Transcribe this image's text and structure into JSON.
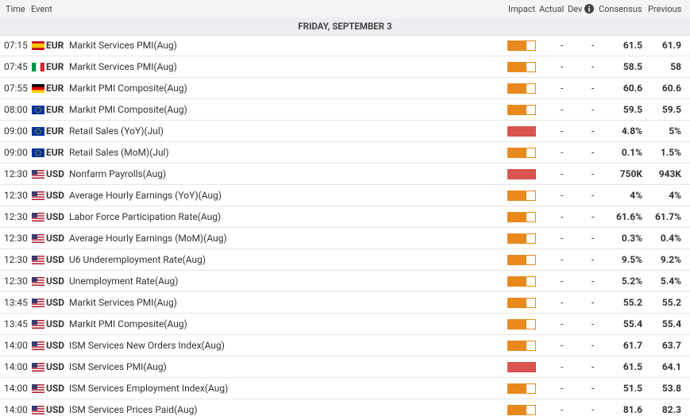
{
  "header": {
    "time": "Time",
    "event": "Event",
    "impact": "Impact",
    "actual": "Actual",
    "dev": "Dev",
    "consensus": "Consensus",
    "previous": "Previous"
  },
  "date": "FRIDAY, SEPTEMBER 3",
  "impact_colors": {
    "medium": "#e8891d",
    "high": "#d9534f"
  },
  "rows": [
    {
      "time": "07:15",
      "flag": {
        "dir": "h",
        "colors": [
          "#c60b1e",
          "#ffc400",
          "#ffc400",
          "#c60b1e"
        ]
      },
      "currency": "EUR",
      "event": "Markit Services PMI(Aug)",
      "impact": "medium",
      "actual": "-",
      "dev": "-",
      "consensus": "61.5",
      "previous": "61.9"
    },
    {
      "time": "07:45",
      "flag": {
        "dir": "v",
        "colors": [
          "#009246",
          "#ffffff",
          "#ce2b37"
        ]
      },
      "currency": "EUR",
      "event": "Markit Services PMI(Aug)",
      "impact": "medium",
      "actual": "-",
      "dev": "-",
      "consensus": "58.5",
      "previous": "58"
    },
    {
      "time": "07:55",
      "flag": {
        "dir": "h",
        "colors": [
          "#000000",
          "#dd0000",
          "#ffce00"
        ]
      },
      "currency": "EUR",
      "event": "Markit PMI Composite(Aug)",
      "impact": "medium",
      "actual": "-",
      "dev": "-",
      "consensus": "60.6",
      "previous": "60.6"
    },
    {
      "time": "08:00",
      "flag": {
        "dir": "eu",
        "colors": [
          "#003399",
          "#ffcc00"
        ]
      },
      "currency": "EUR",
      "event": "Markit PMI Composite(Aug)",
      "impact": "medium",
      "actual": "-",
      "dev": "-",
      "consensus": "59.5",
      "previous": "59.5"
    },
    {
      "time": "09:00",
      "flag": {
        "dir": "eu",
        "colors": [
          "#003399",
          "#ffcc00"
        ]
      },
      "currency": "EUR",
      "event": "Retail Sales (YoY)(Jul)",
      "impact": "high",
      "actual": "-",
      "dev": "-",
      "consensus": "4.8%",
      "previous": "5%"
    },
    {
      "time": "09:00",
      "flag": {
        "dir": "eu",
        "colors": [
          "#003399",
          "#ffcc00"
        ]
      },
      "currency": "EUR",
      "event": "Retail Sales (MoM)(Jul)",
      "impact": "medium",
      "actual": "-",
      "dev": "-",
      "consensus": "0.1%",
      "previous": "1.5%"
    },
    {
      "time": "12:30",
      "flag": {
        "dir": "us",
        "colors": [
          "#b22234",
          "#ffffff",
          "#3c3b6e"
        ]
      },
      "currency": "USD",
      "event": "Nonfarm Payrolls(Aug)",
      "impact": "high",
      "actual": "-",
      "dev": "-",
      "consensus": "750K",
      "previous": "943K"
    },
    {
      "time": "12:30",
      "flag": {
        "dir": "us",
        "colors": [
          "#b22234",
          "#ffffff",
          "#3c3b6e"
        ]
      },
      "currency": "USD",
      "event": "Average Hourly Earnings (YoY)(Aug)",
      "impact": "medium",
      "actual": "-",
      "dev": "-",
      "consensus": "4%",
      "previous": "4%"
    },
    {
      "time": "12:30",
      "flag": {
        "dir": "us",
        "colors": [
          "#b22234",
          "#ffffff",
          "#3c3b6e"
        ]
      },
      "currency": "USD",
      "event": "Labor Force Participation Rate(Aug)",
      "impact": "medium",
      "actual": "-",
      "dev": "-",
      "consensus": "61.6%",
      "previous": "61.7%"
    },
    {
      "time": "12:30",
      "flag": {
        "dir": "us",
        "colors": [
          "#b22234",
          "#ffffff",
          "#3c3b6e"
        ]
      },
      "currency": "USD",
      "event": "Average Hourly Earnings (MoM)(Aug)",
      "impact": "medium",
      "actual": "-",
      "dev": "-",
      "consensus": "0.3%",
      "previous": "0.4%"
    },
    {
      "time": "12:30",
      "flag": {
        "dir": "us",
        "colors": [
          "#b22234",
          "#ffffff",
          "#3c3b6e"
        ]
      },
      "currency": "USD",
      "event": "U6 Underemployment Rate(Aug)",
      "impact": "medium",
      "actual": "-",
      "dev": "-",
      "consensus": "9.5%",
      "previous": "9.2%"
    },
    {
      "time": "12:30",
      "flag": {
        "dir": "us",
        "colors": [
          "#b22234",
          "#ffffff",
          "#3c3b6e"
        ]
      },
      "currency": "USD",
      "event": "Unemployment Rate(Aug)",
      "impact": "medium",
      "actual": "-",
      "dev": "-",
      "consensus": "5.2%",
      "previous": "5.4%"
    },
    {
      "time": "13:45",
      "flag": {
        "dir": "us",
        "colors": [
          "#b22234",
          "#ffffff",
          "#3c3b6e"
        ]
      },
      "currency": "USD",
      "event": "Markit Services PMI(Aug)",
      "impact": "medium",
      "actual": "-",
      "dev": "-",
      "consensus": "55.2",
      "previous": "55.2"
    },
    {
      "time": "13:45",
      "flag": {
        "dir": "us",
        "colors": [
          "#b22234",
          "#ffffff",
          "#3c3b6e"
        ]
      },
      "currency": "USD",
      "event": "Markit PMI Composite(Aug)",
      "impact": "medium",
      "actual": "-",
      "dev": "-",
      "consensus": "55.4",
      "previous": "55.4"
    },
    {
      "time": "14:00",
      "flag": {
        "dir": "us",
        "colors": [
          "#b22234",
          "#ffffff",
          "#3c3b6e"
        ]
      },
      "currency": "USD",
      "event": "ISM Services New Orders Index(Aug)",
      "impact": "medium",
      "actual": "-",
      "dev": "-",
      "consensus": "61.7",
      "previous": "63.7"
    },
    {
      "time": "14:00",
      "flag": {
        "dir": "us",
        "colors": [
          "#b22234",
          "#ffffff",
          "#3c3b6e"
        ]
      },
      "currency": "USD",
      "event": "ISM Services PMI(Aug)",
      "impact": "high",
      "actual": "-",
      "dev": "-",
      "consensus": "61.5",
      "previous": "64.1"
    },
    {
      "time": "14:00",
      "flag": {
        "dir": "us",
        "colors": [
          "#b22234",
          "#ffffff",
          "#3c3b6e"
        ]
      },
      "currency": "USD",
      "event": "ISM Services Employment Index(Aug)",
      "impact": "medium",
      "actual": "-",
      "dev": "-",
      "consensus": "51.5",
      "previous": "53.8"
    },
    {
      "time": "14:00",
      "flag": {
        "dir": "us",
        "colors": [
          "#b22234",
          "#ffffff",
          "#3c3b6e"
        ]
      },
      "currency": "USD",
      "event": "ISM Services Prices Paid(Aug)",
      "impact": "medium",
      "actual": "-",
      "dev": "-",
      "consensus": "81.6",
      "previous": "82.3"
    }
  ]
}
